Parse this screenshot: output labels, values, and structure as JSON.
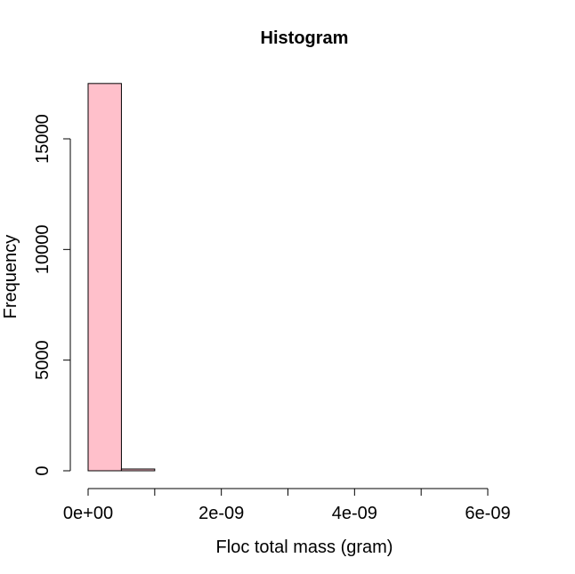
{
  "chart_data": {
    "type": "bar",
    "title": "Histogram",
    "xlabel": "Floc total mass (gram)",
    "ylabel": "Frequency",
    "bar_color": "#FFC0CB",
    "bin_width": 5e-10,
    "bins": [
      {
        "x0": 0,
        "x1": 5e-10,
        "count": 17500
      },
      {
        "x0": 5e-10,
        "x1": 1e-09,
        "count": 80
      },
      {
        "x0": 1e-09,
        "x1": 1.5e-09,
        "count": 0
      },
      {
        "x0": 1.5e-09,
        "x1": 2e-09,
        "count": 0
      },
      {
        "x0": 2e-09,
        "x1": 2.5e-09,
        "count": 0
      },
      {
        "x0": 2.5e-09,
        "x1": 3e-09,
        "count": 0
      },
      {
        "x0": 3e-09,
        "x1": 3.5e-09,
        "count": 0
      },
      {
        "x0": 3.5e-09,
        "x1": 4e-09,
        "count": 0
      },
      {
        "x0": 4e-09,
        "x1": 4.5e-09,
        "count": 0
      },
      {
        "x0": 4.5e-09,
        "x1": 5e-09,
        "count": 0
      },
      {
        "x0": 5e-09,
        "x1": 5.5e-09,
        "count": 0
      },
      {
        "x0": 5.5e-09,
        "x1": 6e-09,
        "count": 0
      },
      {
        "x0": 6e-09,
        "x1": 6.5e-09,
        "count": 0
      }
    ],
    "xlim": [
      0,
      6e-09
    ],
    "ylim": [
      0,
      15000
    ],
    "x_ticks": [
      0,
      1e-09,
      2e-09,
      3e-09,
      4e-09,
      5e-09,
      6e-09
    ],
    "x_tick_labels": [
      {
        "value": 0,
        "label": "0e+00"
      },
      {
        "value": 2e-09,
        "label": "2e-09"
      },
      {
        "value": 4e-09,
        "label": "4e-09"
      },
      {
        "value": 6e-09,
        "label": "6e-09"
      }
    ],
    "y_ticks": [
      {
        "value": 0,
        "label": "0"
      },
      {
        "value": 5000,
        "label": "5000"
      },
      {
        "value": 10000,
        "label": "10000"
      },
      {
        "value": 15000,
        "label": "15000"
      }
    ],
    "grid": false,
    "legend": "none"
  }
}
